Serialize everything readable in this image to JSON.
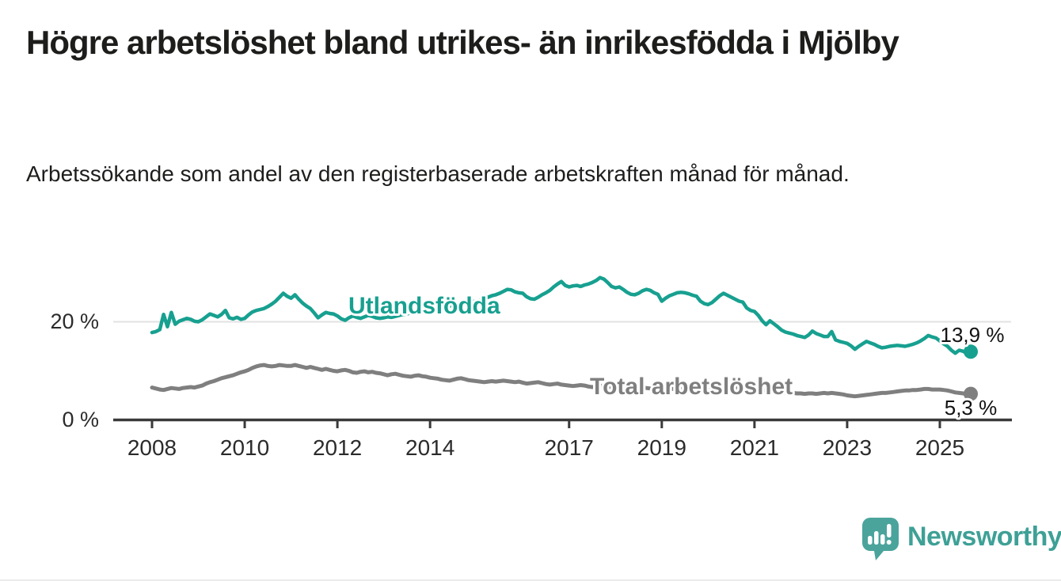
{
  "header": {
    "title": "Högre arbetslöshet bland utrikes- än inrikesfödda i Mjölby",
    "subtitle": "Arbetssökande som andel av den registerbaserade arbetskraften månad för månad."
  },
  "chart_data": {
    "type": "line",
    "title": "",
    "xlabel": "",
    "ylabel": "",
    "x_domain": {
      "start": "2008-01",
      "end": "2025-09",
      "frequency": "monthly"
    },
    "ylim": [
      0,
      31
    ],
    "grid": "single horizontal gridline at 20 %",
    "legend_position": "inline series labels on lines",
    "xtick_labels": [
      2008,
      2010,
      2012,
      2014,
      2017,
      2019,
      2021,
      2023,
      2025
    ],
    "ytick_labels": [
      {
        "value": 20,
        "label": "20 %"
      },
      {
        "value": 0,
        "label": "0 %"
      }
    ],
    "colors": {
      "axis": "#3a3a3a",
      "grid": "#e2e2e2"
    },
    "series": [
      {
        "name": "Utlandsfödda",
        "color": "#17a090",
        "end_label": "13,9 %",
        "end_value": 13.9,
        "values": [
          17.8,
          18.0,
          18.4,
          21.5,
          19.0,
          21.9,
          19.5,
          20.1,
          20.4,
          20.7,
          20.5,
          20.1,
          20.0,
          20.4,
          21.0,
          21.6,
          21.3,
          21.0,
          21.5,
          22.3,
          20.8,
          20.6,
          20.9,
          20.5,
          20.7,
          21.4,
          22.0,
          22.3,
          22.5,
          22.7,
          23.1,
          23.6,
          24.2,
          25.0,
          25.8,
          25.2,
          24.8,
          25.5,
          24.6,
          23.8,
          23.2,
          22.7,
          21.8,
          20.8,
          21.4,
          21.9,
          21.7,
          21.6,
          21.2,
          20.6,
          20.3,
          20.8,
          21.2,
          20.9,
          20.7,
          21.0,
          21.3,
          21.1,
          20.8,
          20.7,
          20.8,
          21.0,
          20.9,
          21.1,
          21.3,
          21.5,
          21.6,
          21.8,
          22.0,
          22.1,
          22.2,
          22.3,
          22.3,
          22.5,
          22.7,
          22.8,
          23.0,
          23.2,
          23.4,
          23.6,
          23.8,
          23.9,
          24.0,
          24.1,
          24.2,
          24.4,
          24.7,
          25.0,
          25.3,
          25.5,
          25.8,
          26.2,
          26.6,
          26.5,
          26.1,
          25.9,
          25.8,
          25.1,
          24.7,
          24.6,
          25.0,
          25.5,
          25.9,
          26.4,
          27.1,
          27.7,
          28.2,
          27.4,
          27.1,
          27.3,
          27.4,
          27.2,
          27.5,
          27.7,
          28.0,
          28.4,
          29.0,
          28.7,
          28.0,
          27.2,
          26.9,
          27.1,
          26.6,
          26.0,
          25.6,
          25.5,
          25.8,
          26.3,
          26.6,
          26.4,
          25.9,
          25.6,
          24.2,
          24.8,
          25.3,
          25.6,
          25.9,
          26.0,
          25.9,
          25.7,
          25.4,
          25.2,
          24.2,
          23.7,
          23.5,
          23.9,
          24.6,
          25.3,
          25.8,
          25.4,
          25.0,
          24.6,
          24.2,
          24.0,
          22.8,
          22.3,
          22.1,
          21.3,
          20.2,
          19.4,
          20.2,
          19.6,
          19.0,
          18.3,
          17.9,
          17.7,
          17.5,
          17.2,
          17.0,
          16.8,
          17.3,
          18.1,
          17.6,
          17.3,
          17.0,
          17.0,
          18.0,
          16.3,
          16.0,
          15.8,
          15.6,
          15.1,
          14.4,
          15.0,
          15.5,
          16.0,
          15.7,
          15.4,
          15.0,
          14.7,
          14.8,
          15.0,
          15.1,
          15.2,
          15.1,
          15.0,
          15.2,
          15.4,
          15.7,
          16.1,
          16.6,
          17.2,
          16.9,
          16.7,
          16.1,
          15.5,
          15.0,
          14.2,
          13.6,
          14.2,
          14.0,
          13.6,
          13.9
        ]
      },
      {
        "name": "Total arbetslöshet",
        "color": "#7f7f7f",
        "end_label": "5,3 %",
        "end_value": 5.3,
        "values": [
          6.6,
          6.4,
          6.2,
          6.1,
          6.3,
          6.5,
          6.4,
          6.3,
          6.5,
          6.6,
          6.7,
          6.6,
          6.8,
          7.0,
          7.4,
          7.7,
          7.9,
          8.2,
          8.5,
          8.7,
          8.9,
          9.1,
          9.4,
          9.7,
          9.9,
          10.2,
          10.6,
          10.9,
          11.1,
          11.2,
          11.0,
          10.9,
          11.0,
          11.2,
          11.1,
          11.0,
          11.0,
          11.2,
          11.0,
          10.8,
          10.6,
          10.8,
          10.6,
          10.4,
          10.2,
          10.4,
          10.2,
          10.0,
          9.9,
          10.1,
          10.2,
          10.0,
          9.7,
          9.6,
          9.8,
          9.9,
          9.7,
          9.8,
          9.6,
          9.5,
          9.3,
          9.1,
          9.3,
          9.4,
          9.2,
          9.0,
          8.9,
          8.8,
          9.0,
          9.1,
          8.9,
          8.8,
          8.6,
          8.5,
          8.4,
          8.2,
          8.1,
          8.0,
          8.2,
          8.4,
          8.5,
          8.3,
          8.1,
          8.0,
          7.9,
          7.8,
          7.7,
          7.8,
          7.9,
          7.8,
          7.9,
          8.0,
          7.9,
          7.8,
          7.7,
          7.8,
          7.6,
          7.4,
          7.5,
          7.6,
          7.7,
          7.5,
          7.3,
          7.2,
          7.3,
          7.4,
          7.2,
          7.1,
          7.0,
          6.9,
          7.0,
          7.1,
          7.0,
          6.8,
          6.7,
          6.8,
          6.9,
          7.0,
          6.8,
          6.7,
          6.6,
          6.7,
          6.8,
          6.6,
          6.5,
          6.4,
          6.5,
          6.6,
          6.5,
          6.4,
          6.3,
          6.4,
          6.4,
          6.5,
          6.4,
          6.3,
          6.2,
          6.3,
          6.4,
          6.3,
          6.2,
          6.1,
          6.2,
          6.3,
          6.4,
          6.5,
          6.7,
          6.9,
          7.0,
          6.9,
          6.8,
          6.7,
          6.6,
          6.5,
          6.4,
          6.3,
          6.2,
          6.1,
          6.0,
          5.9,
          5.9,
          5.8,
          5.7,
          5.6,
          5.6,
          5.5,
          5.5,
          5.4,
          5.4,
          5.3,
          5.4,
          5.4,
          5.3,
          5.4,
          5.5,
          5.4,
          5.5,
          5.4,
          5.3,
          5.2,
          5.0,
          4.9,
          4.8,
          4.9,
          5.0,
          5.1,
          5.2,
          5.3,
          5.4,
          5.5,
          5.5,
          5.6,
          5.7,
          5.8,
          5.9,
          6.0,
          6.0,
          6.1,
          6.1,
          6.2,
          6.3,
          6.3,
          6.2,
          6.2,
          6.2,
          6.1,
          6.0,
          5.8,
          5.6,
          5.5,
          5.4,
          5.3,
          5.3
        ]
      }
    ]
  },
  "branding": {
    "name": "Newsworthy",
    "text_color": "#3ea096",
    "icon_color": "#4aa49c"
  }
}
